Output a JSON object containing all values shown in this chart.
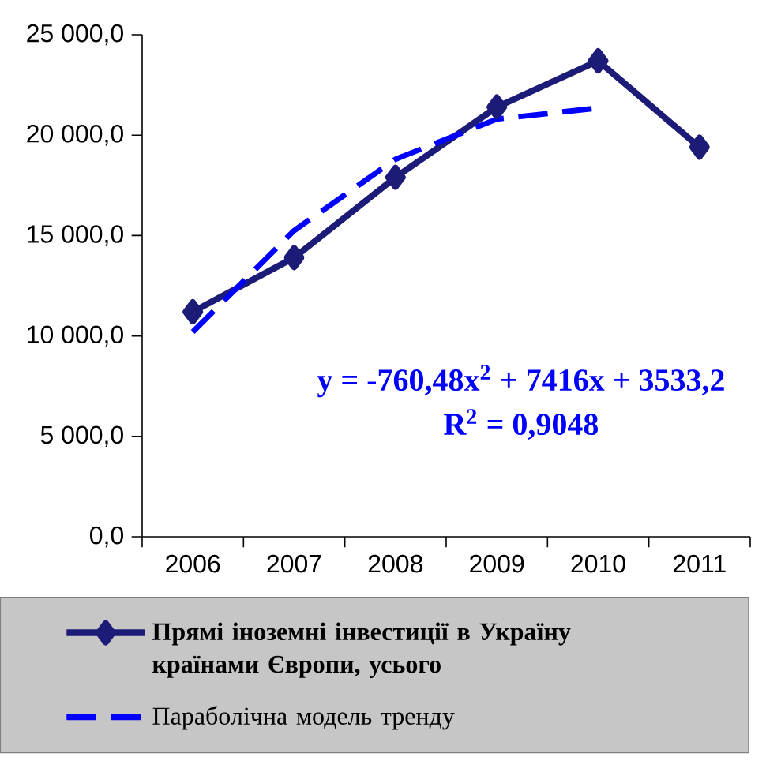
{
  "chart_data": {
    "type": "line",
    "categories": [
      "2006",
      "2007",
      "2008",
      "2009",
      "2010",
      "2011"
    ],
    "series": [
      {
        "name": "Прямі іноземні інвестиції в Україну країнами Європи, усього",
        "color": "#1c1c78",
        "values": [
          11200,
          13900,
          17900,
          21400,
          23700,
          19400
        ],
        "marker": "diamond",
        "line_style": "solid"
      },
      {
        "name": "Параболічна модель тренду",
        "color": "#0000ff",
        "values": [
          10200,
          15250,
          18800,
          20800,
          21350,
          null
        ],
        "marker": "none",
        "line_style": "dashed"
      }
    ],
    "ylim": [
      0,
      25000
    ],
    "yticks": [
      {
        "value": 0,
        "label": "0,0"
      },
      {
        "value": 5000,
        "label": "5 000,0"
      },
      {
        "value": 10000,
        "label": "10 000,0"
      },
      {
        "value": 15000,
        "label": "15 000,0"
      },
      {
        "value": 20000,
        "label": "20 000,0"
      },
      {
        "value": 25000,
        "label": "25 000,0"
      }
    ],
    "annotations": [
      "y = -760,48x$^{2}$ + 7416x + 3533,2",
      "R$^{2}$ = 0,9048"
    ],
    "legend": "bottom",
    "grid": false
  }
}
